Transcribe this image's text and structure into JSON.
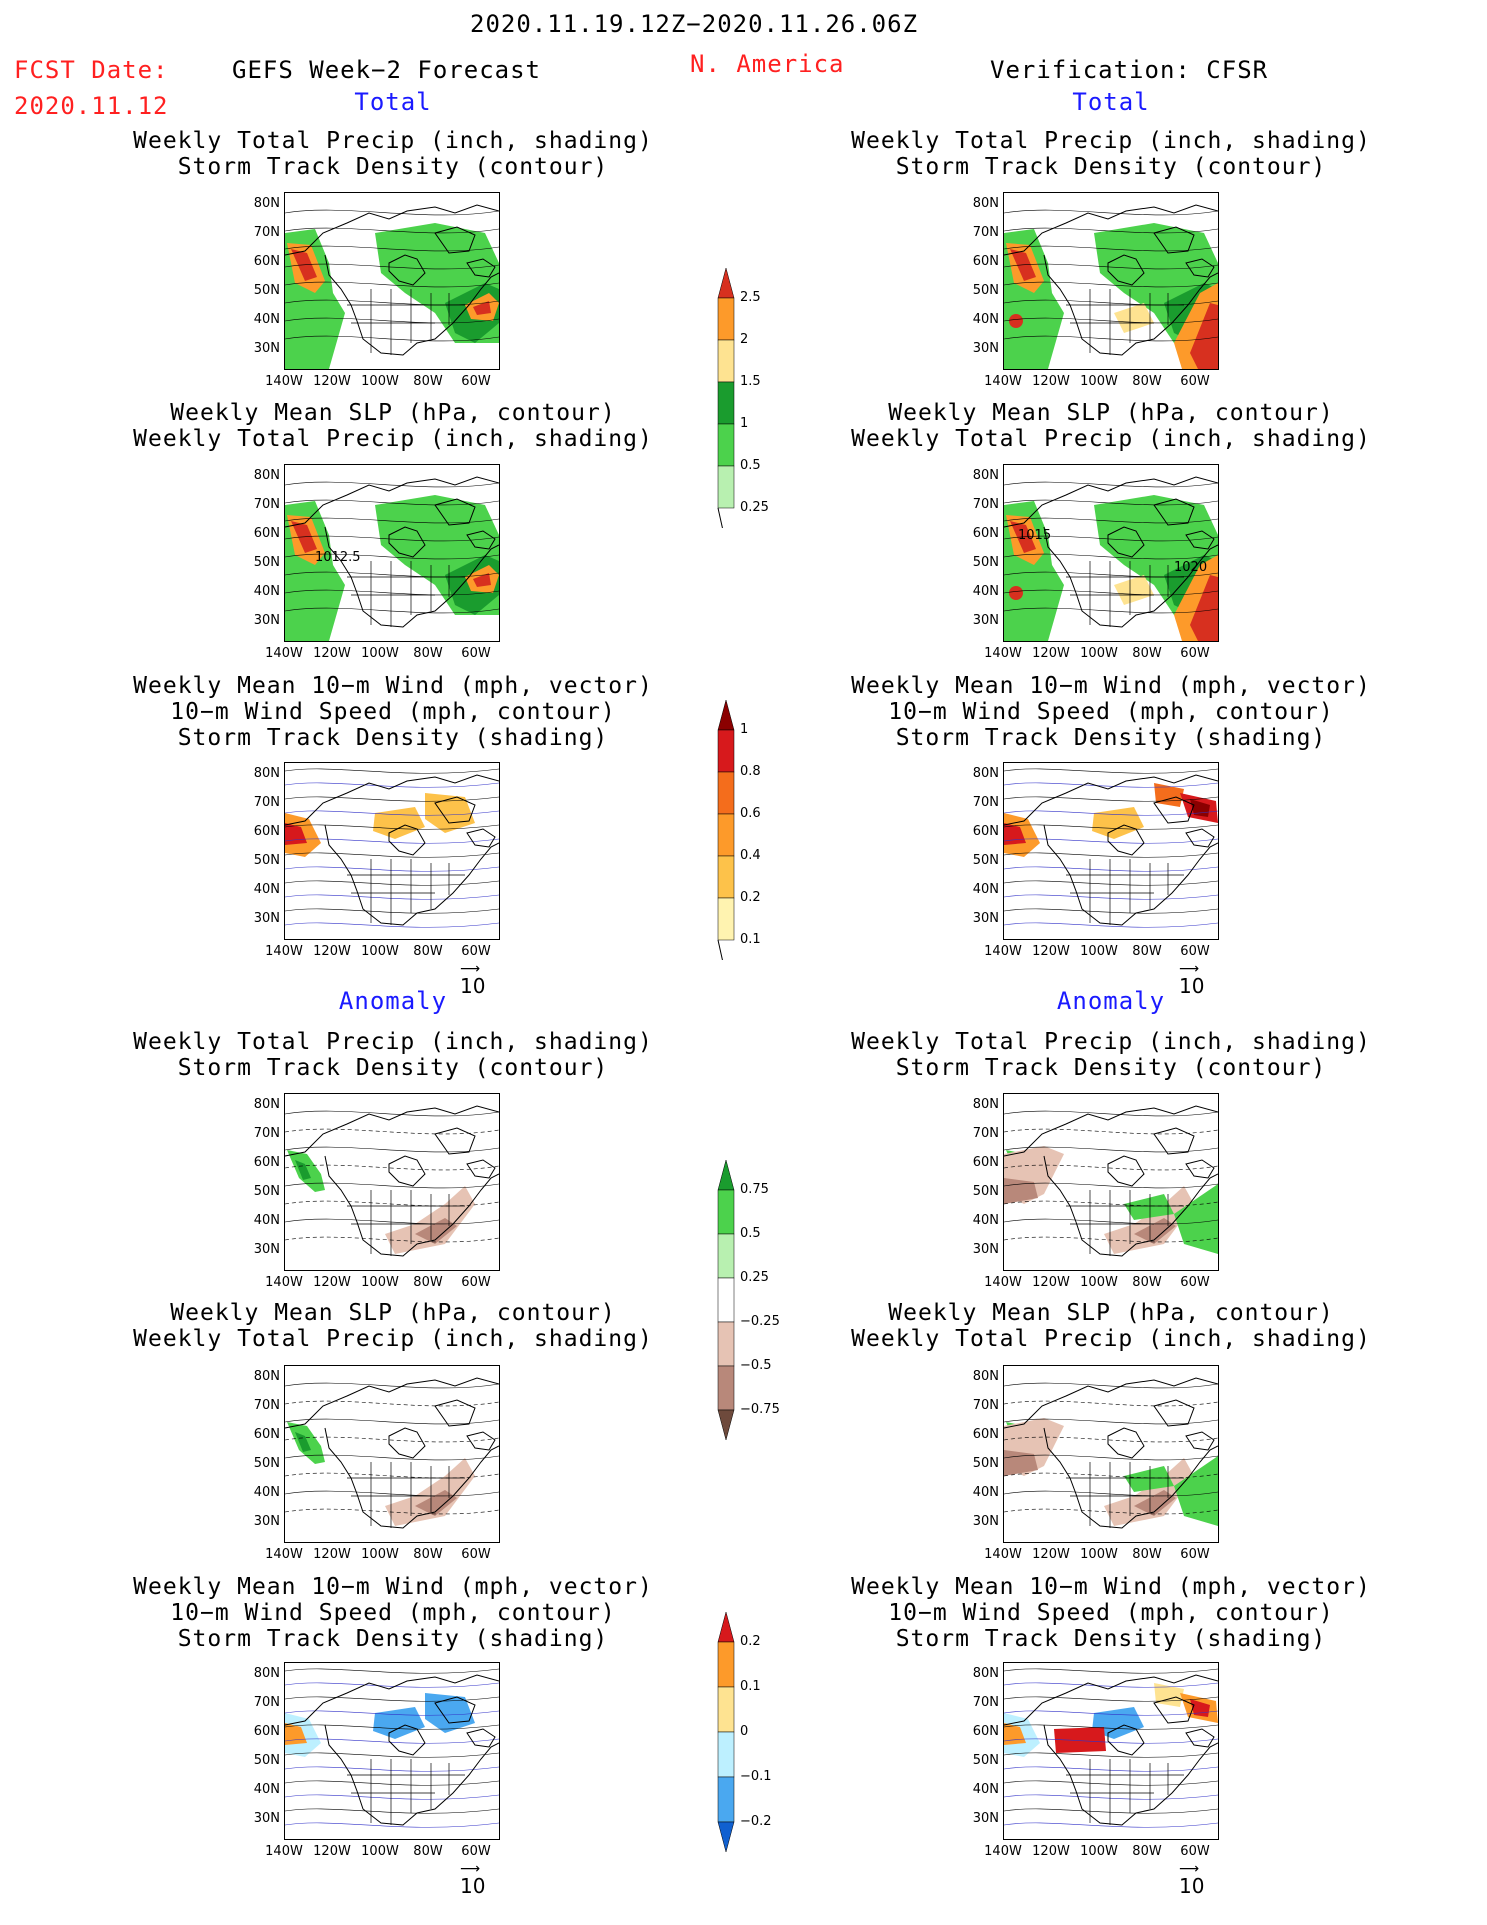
{
  "header": {
    "period": "2020.11.19.12Z−2020.11.26.06Z",
    "fcst_label": "FCST Date:",
    "fcst_date": "2020.11.12",
    "left_title": "GEFS Week−2 Forecast",
    "region": "N. America",
    "right_title": "Verification: CFSR"
  },
  "sections": {
    "total": "Total",
    "anomaly": "Anomaly"
  },
  "panel_titles": {
    "precip_storm": [
      "Weekly Total Precip (inch, shading)",
      "Storm Track Density (contour)"
    ],
    "slp_precip": [
      "Weekly Mean SLP (hPa, contour)",
      "Weekly Total Precip (inch, shading)"
    ],
    "wind_storm": [
      "Weekly Mean 10−m Wind (mph, vector)",
      "10−m Wind Speed (mph, contour)",
      "Storm Track Density (shading)"
    ]
  },
  "axes": {
    "lat_labels": [
      "80N",
      "70N",
      "60N",
      "50N",
      "40N",
      "30N"
    ],
    "lon_labels": [
      "140W",
      "120W",
      "100W",
      "80W",
      "60W"
    ]
  },
  "contour_labels": {
    "fcst_slp": "1012.5",
    "cfsr_slp_a": "1015",
    "cfsr_slp_b": "1020"
  },
  "vector_reference": "10",
  "colorbars": {
    "precip_total": {
      "labels": [
        "2.5",
        "2",
        "1.5",
        "1",
        "0.5",
        "0.25"
      ],
      "colors": [
        "#d7301f",
        "#fd9a2a",
        "#fee391",
        "#1a9c2e",
        "#4cd24c",
        "#b8f0b0"
      ]
    },
    "storm_total": {
      "labels": [
        "1",
        "0.8",
        "0.6",
        "0.4",
        "0.2",
        "0.1"
      ],
      "colors": [
        "#8b0000",
        "#d7191c",
        "#f46d1c",
        "#fd9a2a",
        "#fdc24a",
        "#fff3b0"
      ]
    },
    "precip_anom": {
      "labels": [
        "0.75",
        "0.5",
        "0.25",
        "−0.25",
        "−0.5",
        "−0.75"
      ],
      "colors": [
        "#1a9c2e",
        "#4cd24c",
        "#b8f0b0",
        "#ffffff",
        "#e6c3b4",
        "#b8887a",
        "#6e4a3c"
      ]
    },
    "storm_anom": {
      "labels": [
        "0.2",
        "0.1",
        "0",
        "−0.1",
        "−0.2"
      ],
      "colors": [
        "#d7191c",
        "#fd9a2a",
        "#fee391",
        "#bdf0ff",
        "#4aa8f0",
        "#1060d0"
      ]
    }
  },
  "colors": {
    "header_red": "#ff2020",
    "section_blue": "#1a1aff",
    "wind_contour": "#3232c8"
  }
}
